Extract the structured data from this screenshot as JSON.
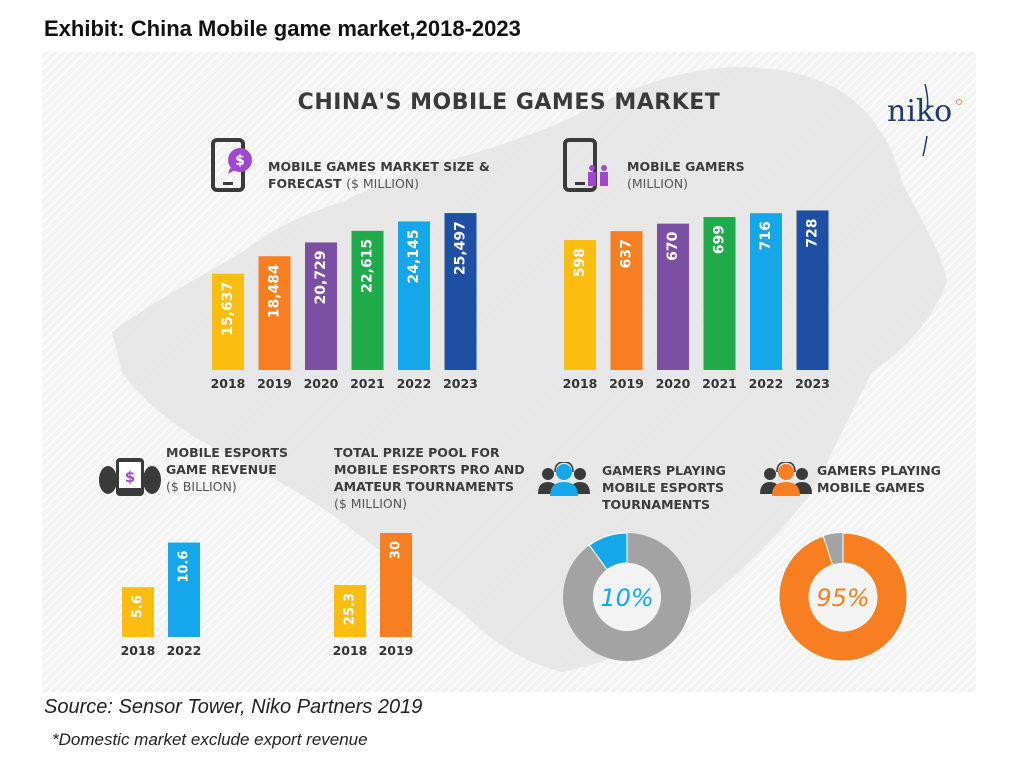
{
  "exhibit_title": "Exhibit: China Mobile game market,2018-2023",
  "infographic_title": "CHINA'S MOBILE GAMES MARKET",
  "logo": "niko",
  "source": "Source: Sensor Tower, Niko Partners 2019",
  "note": "*Domestic market exclude export revenue",
  "colors": {
    "yellow": "#fbbd0f",
    "orange": "#f77f22",
    "purple": "#7b4fa1",
    "green": "#1fab4a",
    "light_blue": "#16a7ea",
    "dark_blue": "#1f4fa3",
    "gray": "#a3a3a3",
    "icon_purple": "#a246d0"
  },
  "chart_data": [
    {
      "id": "market_size",
      "type": "bar",
      "title_bold": "MOBILE GAMES MARKET SIZE &",
      "title_bold2": "FORECAST",
      "title_unit": "($ MILLION)",
      "icon": "phone-dollar-icon",
      "categories": [
        "2018",
        "2019",
        "2020",
        "2021",
        "2022",
        "2023"
      ],
      "values": [
        15637,
        18484,
        20729,
        22615,
        24145,
        25497
      ],
      "labels": [
        "15,637",
        "18,484",
        "20,729",
        "22,615",
        "24,145",
        "25,497"
      ],
      "bar_colors": [
        "#fbbd0f",
        "#f77f22",
        "#7b4fa1",
        "#1fab4a",
        "#16a7ea",
        "#1f4fa3"
      ],
      "xlabel": "",
      "ylabel": "",
      "ylim": [
        0,
        26000
      ]
    },
    {
      "id": "gamers",
      "type": "bar",
      "title_bold": "MOBILE GAMERS",
      "title_unit": "(MILLION)",
      "icon": "phone-people-icon",
      "categories": [
        "2018",
        "2019",
        "2020",
        "2021",
        "2022",
        "2023"
      ],
      "values": [
        598,
        637,
        670,
        699,
        716,
        728
      ],
      "labels": [
        "598",
        "637",
        "670",
        "699",
        "716",
        "728"
      ],
      "bar_colors": [
        "#fbbd0f",
        "#f77f22",
        "#7b4fa1",
        "#1fab4a",
        "#16a7ea",
        "#1f4fa3"
      ],
      "xlabel": "",
      "ylabel": "",
      "ylim": [
        0,
        750
      ]
    },
    {
      "id": "esports_revenue",
      "type": "bar",
      "title_lines": [
        "MOBILE ESPORTS",
        "GAME REVENUE"
      ],
      "title_unit": "($ BILLION)",
      "icon": "gamepad-phone-icon",
      "categories": [
        "2018",
        "2022"
      ],
      "values": [
        5.6,
        10.6
      ],
      "labels": [
        "5.6",
        "10.6"
      ],
      "bar_colors": [
        "#fbbd0f",
        "#16a7ea"
      ],
      "ylim": [
        0,
        11
      ]
    },
    {
      "id": "prize_pool",
      "type": "bar",
      "title_lines": [
        "TOTAL PRIZE POOL FOR",
        "MOBILE ESPORTS PRO AND",
        "AMATEUR TOURNAMENTS"
      ],
      "title_unit": "($ MILLION)",
      "categories": [
        "2018",
        "2019"
      ],
      "values": [
        25.3,
        30
      ],
      "labels": [
        "25.3",
        "30"
      ],
      "bar_colors": [
        "#fbbd0f",
        "#f77f22"
      ],
      "ylim": [
        0,
        31
      ]
    },
    {
      "id": "esports_tournament_players",
      "type": "pie",
      "title_lines": [
        "GAMERS PLAYING",
        "MOBILE ESPORTS",
        "TOURNAMENTS"
      ],
      "icon": "headset-people-icon",
      "value": 10,
      "label": "10%",
      "slice_color": "#16a7ea",
      "rest_color": "#a3a3a3"
    },
    {
      "id": "mobile_game_players",
      "type": "pie",
      "title_lines": [
        "GAMERS PLAYING",
        "MOBILE GAMES"
      ],
      "icon": "headset-people-icon",
      "value": 95,
      "label": "95%",
      "slice_color": "#f77f22",
      "rest_color": "#a3a3a3"
    }
  ]
}
